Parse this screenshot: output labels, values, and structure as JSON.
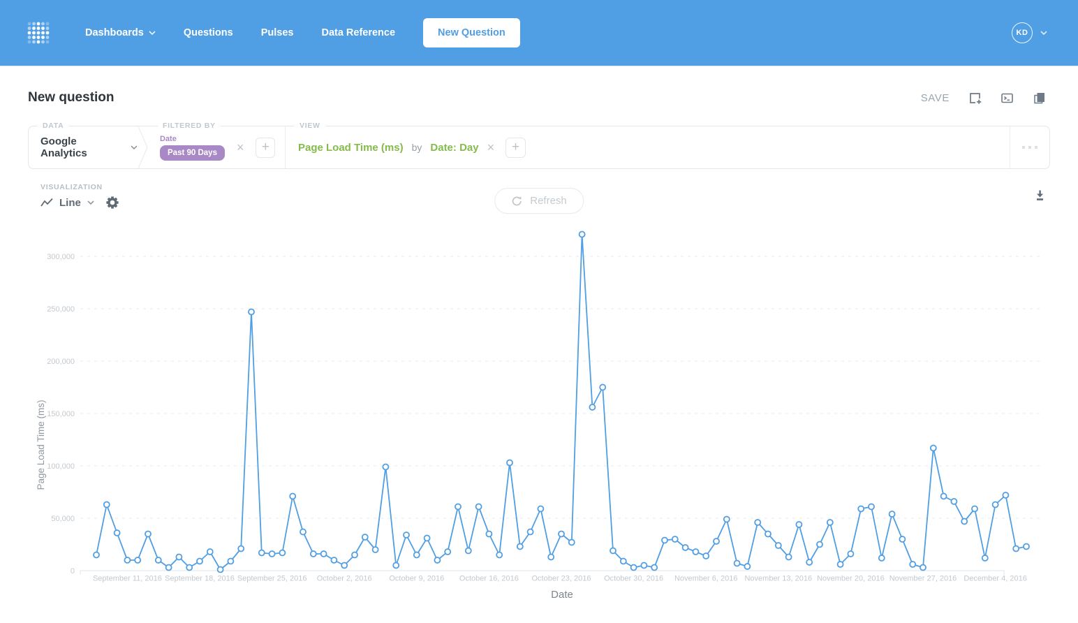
{
  "nav": {
    "items": [
      {
        "label": "Dashboards",
        "has_chevron": true
      },
      {
        "label": "Questions",
        "has_chevron": false
      },
      {
        "label": "Pulses",
        "has_chevron": false
      },
      {
        "label": "Data Reference",
        "has_chevron": false
      }
    ],
    "new_question_label": "New Question",
    "avatar_initials": "KD"
  },
  "header": {
    "title": "New question",
    "save_label": "SAVE"
  },
  "builder": {
    "data_section_label": "DATA",
    "data_source": "Google Analytics",
    "filter_section_label": "FILTERED BY",
    "filter_field": "Date",
    "filter_value": "Past 90 Days",
    "view_section_label": "VIEW",
    "aggregation": "Page Load Time (ms)",
    "by_label": "by",
    "breakout": "Date: Day"
  },
  "viz": {
    "section_label": "VISUALIZATION",
    "type_label": "Line",
    "refresh_label": "Refresh"
  },
  "icons": {
    "logo": "metabase-dots",
    "nav_chevron": "chevron-down",
    "add_to_dashboard": "square-plus",
    "native_query": "terminal",
    "data_panel": "stacked-squares",
    "visualization_type": "line-zigzag",
    "settings": "gear",
    "refresh": "circular-arrow",
    "download": "arrow-down-to-bar",
    "remove": "x",
    "add": "plus",
    "more": "ellipsis"
  },
  "colors": {
    "brand_blue": "#509EE3",
    "line_blue": "#509EE3",
    "green": "#84BB4C",
    "purple": "#A989C5",
    "grid_gray": "#E7E7E7",
    "tick_gray": "#C3C9CF"
  },
  "chart_data": {
    "type": "line",
    "title": "",
    "xlabel": "Date",
    "ylabel": "Page Load Time (ms)",
    "x_granularity": "day",
    "x_start_date": "2016-09-08",
    "x_tick_labels": [
      "September 11, 2016",
      "September 18, 2016",
      "September 25, 2016",
      "October 2, 2016",
      "October 9, 2016",
      "October 16, 2016",
      "October 23, 2016",
      "October 30, 2016",
      "November 6, 2016",
      "November 13, 2016",
      "November 20, 2016",
      "November 27, 2016",
      "December 4, 2016"
    ],
    "x_tick_indices": [
      3,
      10,
      17,
      24,
      31,
      38,
      45,
      52,
      59,
      66,
      73,
      80,
      87
    ],
    "y_ticks": [
      0,
      50000,
      100000,
      150000,
      200000,
      250000,
      300000
    ],
    "y_tick_labels": [
      "0",
      "50,000",
      "100,000",
      "150,000",
      "200,000",
      "250,000",
      "300,000"
    ],
    "ylim": [
      0,
      330000
    ],
    "grid": "horizontal-dashed",
    "legend": "none",
    "line_color": "#509EE3",
    "values": [
      15000,
      63000,
      36000,
      10000,
      10000,
      35000,
      10000,
      3000,
      13000,
      3000,
      9000,
      18000,
      1000,
      9000,
      21000,
      247000,
      17000,
      16000,
      17000,
      71000,
      37000,
      16000,
      16000,
      10000,
      5000,
      15000,
      32000,
      20000,
      99000,
      5000,
      34000,
      15000,
      31000,
      10000,
      18000,
      61000,
      19000,
      61000,
      35000,
      15000,
      103000,
      23000,
      37000,
      59000,
      13000,
      35000,
      27000,
      321000,
      156000,
      175000,
      19000,
      9000,
      3000,
      5000,
      3000,
      29000,
      30000,
      22000,
      18000,
      14000,
      28000,
      49000,
      7000,
      4000,
      46000,
      35000,
      24000,
      13000,
      44000,
      8000,
      25000,
      46000,
      6000,
      16000,
      59000,
      61000,
      12000,
      54000,
      30000,
      6000,
      3000,
      117000,
      71000,
      66000,
      47000,
      59000,
      12000,
      63000,
      72000,
      21000,
      23000
    ]
  }
}
